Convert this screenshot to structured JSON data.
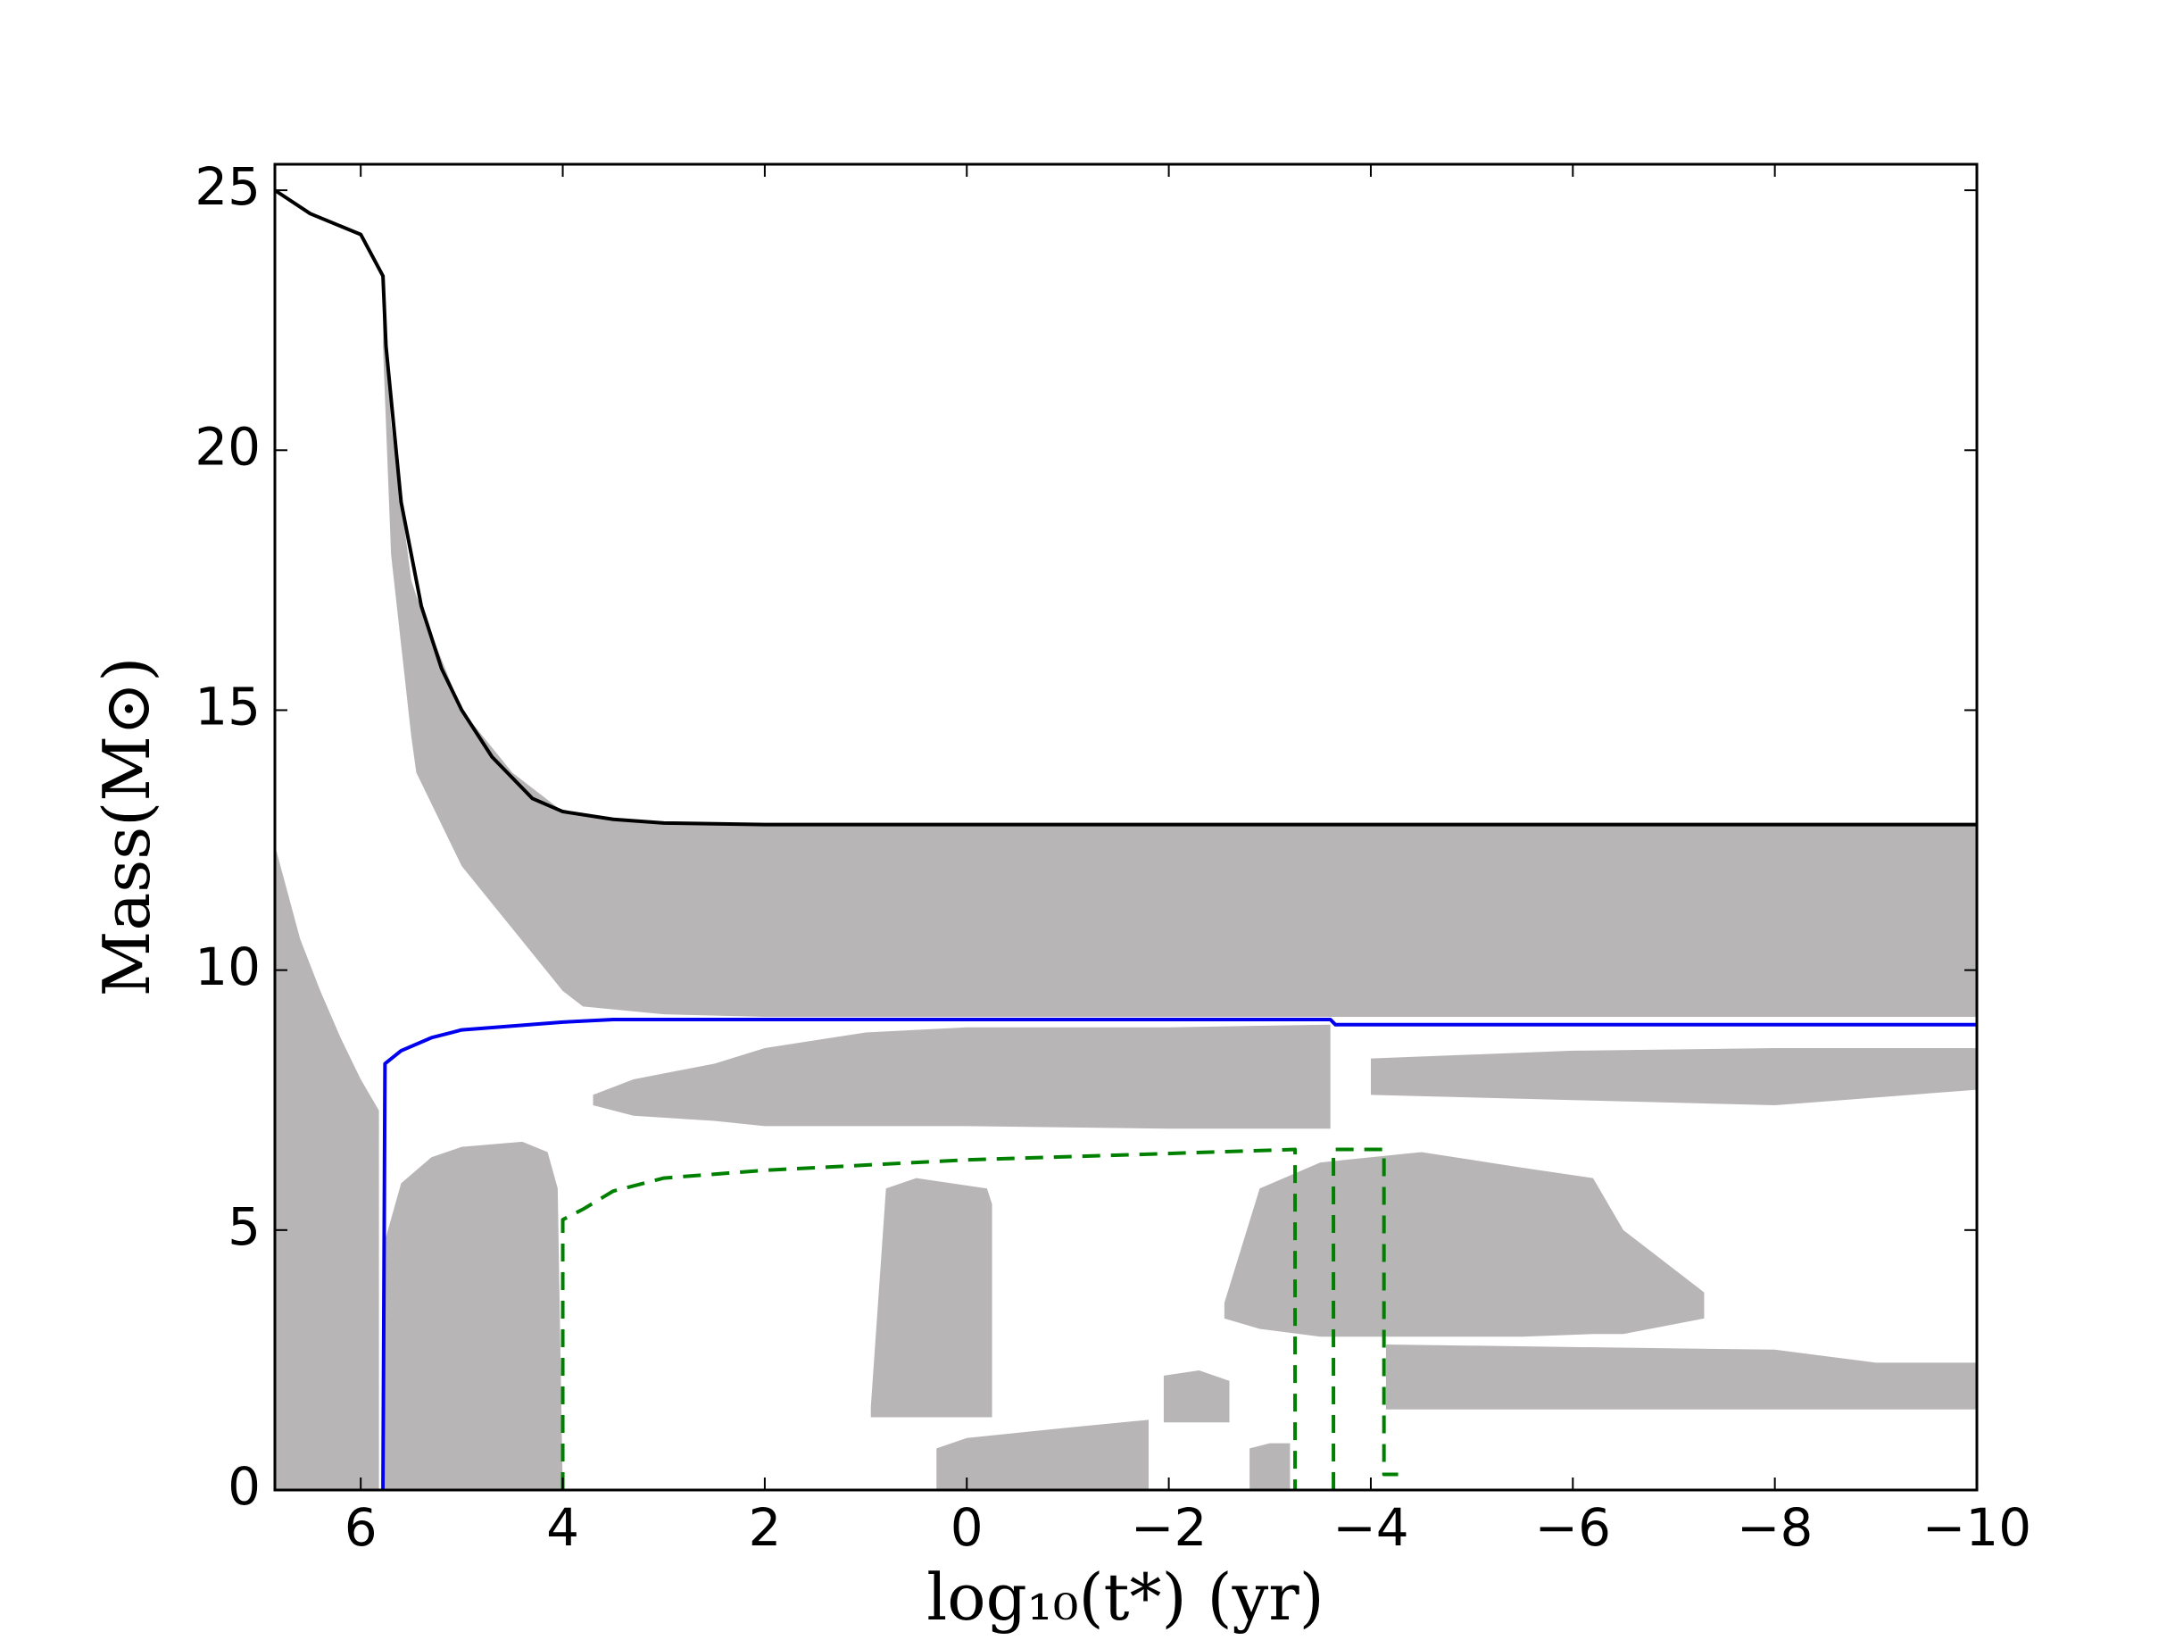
{
  "chart_data": {
    "type": "line",
    "x_label": "log₁₀(t*)  (yr)",
    "y_label": "Mass(M⊙)",
    "xlim": [
      6.85,
      -10
    ],
    "ylim": [
      0,
      25.5
    ],
    "xticks": [
      6,
      4,
      2,
      0,
      {
        "value": -2,
        "label": "−2"
      },
      {
        "value": -4,
        "label": "−4"
      },
      {
        "value": -6,
        "label": "−6"
      },
      {
        "value": -8,
        "label": "−8"
      },
      {
        "value": -10,
        "label": "−10"
      }
    ],
    "yticks": [
      0,
      5,
      10,
      15,
      20,
      25
    ],
    "grid": false,
    "region_color": "#b8b5b6",
    "regions": [
      {
        "x": [
          5.78,
          5.7,
          5.5,
          5.45,
          5.0,
          4.5,
          4.0,
          3.8,
          3.0,
          2.0,
          -10
        ],
        "top": [
          23.3,
          20.5,
          17.5,
          17.2,
          15.0,
          13.8,
          13.05,
          13.0,
          12.83,
          12.8,
          12.8
        ],
        "bottom": [
          22,
          18,
          14.5,
          13.8,
          12.0,
          10.8,
          9.6,
          9.3,
          9.15,
          9.1,
          9.1
        ]
      },
      {
        "x": [
          6.85,
          6.6,
          6.4,
          6.2,
          6.0,
          5.82
        ],
        "top": [
          12.4,
          10.6,
          9.6,
          8.7,
          7.9,
          7.3
        ],
        "bottom": [
          0,
          0,
          0,
          0,
          0,
          0
        ]
      },
      {
        "x": [
          5.76,
          5.6,
          5.3,
          5.0,
          4.4,
          4.15,
          4.05,
          4.0
        ],
        "top": [
          4.8,
          5.9,
          6.4,
          6.6,
          6.7,
          6.5,
          5.8,
          0
        ],
        "bottom": [
          0,
          0,
          0,
          0,
          0,
          0,
          0,
          0
        ]
      },
      {
        "x": [
          3.7,
          3.3,
          2.5,
          2.0,
          1.0,
          0,
          -2,
          -3.6
        ],
        "top": [
          7.6,
          7.9,
          8.2,
          8.5,
          8.8,
          8.9,
          8.9,
          8.95
        ],
        "bottom": [
          7.4,
          7.2,
          7.1,
          7.0,
          7.0,
          7.0,
          6.95,
          6.95
        ]
      },
      {
        "x": [
          -4,
          -6,
          -8,
          -10
        ],
        "top": [
          8.3,
          8.45,
          8.5,
          8.5
        ],
        "bottom": [
          7.6,
          7.5,
          7.4,
          7.7
        ]
      },
      {
        "x": [
          0.95,
          0.8,
          0.5,
          -0.2,
          -0.25
        ],
        "top": [
          1.6,
          5.8,
          6.0,
          5.8,
          5.5
        ],
        "bottom": [
          1.4,
          1.4,
          1.4,
          1.4,
          1.4
        ]
      },
      {
        "x": [
          -2.55,
          -2.9,
          -3.5,
          -4.5,
          -5.5,
          -6.2,
          -6.5,
          -7.3
        ],
        "top": [
          3.6,
          5.8,
          6.3,
          6.5,
          6.2,
          6.0,
          5.0,
          3.8
        ],
        "bottom": [
          3.3,
          3.1,
          2.95,
          2.95,
          2.95,
          3.0,
          3.0,
          3.3
        ]
      },
      {
        "x": [
          -4.15,
          -6,
          -8,
          -9,
          -10
        ],
        "top": [
          2.8,
          2.75,
          2.7,
          2.45,
          2.45
        ],
        "bottom": [
          1.55,
          1.55,
          1.55,
          1.55,
          1.55
        ]
      },
      {
        "x": [
          -1.95,
          -2.3,
          -2.6
        ],
        "top": [
          2.2,
          2.3,
          2.1
        ],
        "bottom": [
          1.3,
          1.3,
          1.3
        ]
      },
      {
        "x": [
          0.3,
          0,
          -1.0,
          -1.8
        ],
        "top": [
          0.8,
          1.0,
          1.2,
          1.35
        ],
        "bottom": [
          0,
          0,
          0,
          0
        ]
      },
      {
        "x": [
          -2.8,
          -3.0,
          -3.2
        ],
        "top": [
          0.8,
          0.9,
          0.9
        ],
        "bottom": [
          0,
          0,
          0
        ]
      }
    ],
    "series": [
      {
        "color": "#000000",
        "dash": false,
        "x": [
          6.85,
          6.5,
          6.0,
          5.78,
          5.75,
          5.6,
          5.4,
          5.2,
          5.0,
          4.7,
          4.3,
          4.0,
          3.5,
          3,
          2,
          -10
        ],
        "values": [
          25,
          24.55,
          24.15,
          23.35,
          22.0,
          19.0,
          17.0,
          15.8,
          15.0,
          14.1,
          13.3,
          13.05,
          12.9,
          12.83,
          12.8,
          12.8
        ]
      },
      {
        "color": "#0000ee",
        "dash": false,
        "x": [
          5.78,
          5.76,
          5.6,
          5.3,
          5.0,
          4,
          3.5,
          -3.6,
          -3.65,
          -10
        ],
        "values": [
          0,
          8.2,
          8.45,
          8.7,
          8.85,
          9.0,
          9.05,
          9.05,
          8.95,
          8.95
        ]
      },
      {
        "color": "#008000",
        "dash": true,
        "x": [
          4,
          4,
          3.8,
          3.5,
          3,
          2,
          1,
          0,
          -3.25,
          -3.25,
          null,
          -3.63,
          -3.63,
          -4.13,
          -4.13,
          -4.27
        ],
        "values": [
          0,
          5.2,
          5.4,
          5.75,
          6.0,
          6.15,
          6.25,
          6.35,
          6.55,
          0,
          null,
          0,
          6.55,
          6.55,
          0.3,
          0.3
        ]
      }
    ]
  }
}
